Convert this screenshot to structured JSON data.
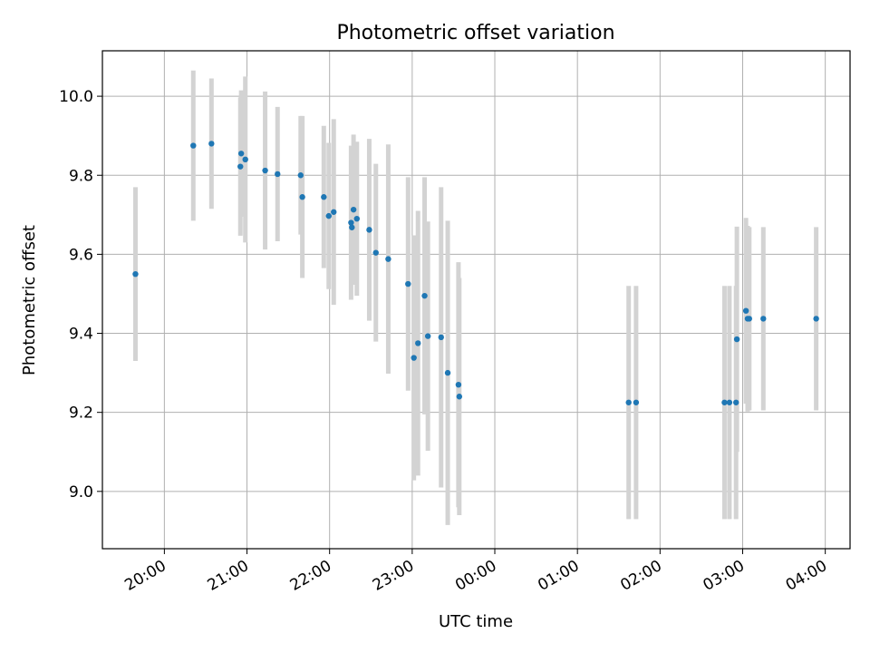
{
  "chart_data": {
    "type": "scatter",
    "title": "Photometric offset variation",
    "xlabel": "UTC time",
    "ylabel": "Photometric offset",
    "x_tick_labels": [
      "20:00",
      "21:00",
      "22:00",
      "23:00",
      "00:00",
      "01:00",
      "02:00",
      "03:00",
      "04:00"
    ],
    "y_tick_labels": [
      "9.0",
      "9.2",
      "9.4",
      "9.6",
      "9.8",
      "10.0"
    ],
    "x_unit": "UTC time (hours from 20:00)",
    "xlim": [
      -0.75,
      8.3
    ],
    "ylim": [
      8.855,
      10.115
    ],
    "grid": true,
    "colors": {
      "points": "#1f77b4",
      "errorbars": "#d3d3d3",
      "grid": "#b0b0b0"
    },
    "points": [
      {
        "x": -0.35,
        "y": 9.55,
        "err": 0.22
      },
      {
        "x": 0.35,
        "y": 9.875,
        "err": 0.19
      },
      {
        "x": 0.57,
        "y": 9.88,
        "err": 0.165
      },
      {
        "x": 0.92,
        "y": 9.822,
        "err": 0.175
      },
      {
        "x": 0.93,
        "y": 9.855,
        "err": 0.16
      },
      {
        "x": 0.98,
        "y": 9.84,
        "err": 0.21
      },
      {
        "x": 1.22,
        "y": 9.812,
        "err": 0.2
      },
      {
        "x": 1.37,
        "y": 9.803,
        "err": 0.17
      },
      {
        "x": 1.65,
        "y": 9.8,
        "err": 0.15
      },
      {
        "x": 1.67,
        "y": 9.745,
        "err": 0.205
      },
      {
        "x": 1.93,
        "y": 9.745,
        "err": 0.18
      },
      {
        "x": 1.99,
        "y": 9.697,
        "err": 0.185
      },
      {
        "x": 2.05,
        "y": 9.707,
        "err": 0.235
      },
      {
        "x": 2.26,
        "y": 9.68,
        "err": 0.195
      },
      {
        "x": 2.27,
        "y": 9.668,
        "err": 0.14
      },
      {
        "x": 2.29,
        "y": 9.713,
        "err": 0.19
      },
      {
        "x": 2.33,
        "y": 9.69,
        "err": 0.195
      },
      {
        "x": 2.48,
        "y": 9.662,
        "err": 0.23
      },
      {
        "x": 2.56,
        "y": 9.604,
        "err": 0.225
      },
      {
        "x": 2.71,
        "y": 9.588,
        "err": 0.29
      },
      {
        "x": 2.95,
        "y": 9.525,
        "err": 0.27
      },
      {
        "x": 3.02,
        "y": 9.338,
        "err": 0.31
      },
      {
        "x": 3.07,
        "y": 9.375,
        "err": 0.335
      },
      {
        "x": 3.15,
        "y": 9.495,
        "err": 0.3
      },
      {
        "x": 3.19,
        "y": 9.393,
        "err": 0.29
      },
      {
        "x": 3.35,
        "y": 9.39,
        "err": 0.38
      },
      {
        "x": 3.43,
        "y": 9.3,
        "err": 0.385
      },
      {
        "x": 3.56,
        "y": 9.27,
        "err": 0.31
      },
      {
        "x": 3.57,
        "y": 9.24,
        "err": 0.3
      },
      {
        "x": 5.62,
        "y": 9.225,
        "err": 0.295
      },
      {
        "x": 5.71,
        "y": 9.225,
        "err": 0.295
      },
      {
        "x": 6.78,
        "y": 9.225,
        "err": 0.295
      },
      {
        "x": 6.84,
        "y": 9.225,
        "err": 0.295
      },
      {
        "x": 6.92,
        "y": 9.225,
        "err": 0.295
      },
      {
        "x": 6.93,
        "y": 9.385,
        "err": 0.285
      },
      {
        "x": 7.04,
        "y": 9.457,
        "err": 0.235
      },
      {
        "x": 7.06,
        "y": 9.437,
        "err": 0.235
      },
      {
        "x": 7.08,
        "y": 9.437,
        "err": 0.232
      },
      {
        "x": 7.25,
        "y": 9.437,
        "err": 0.232
      },
      {
        "x": 7.89,
        "y": 9.437,
        "err": 0.232
      }
    ]
  }
}
